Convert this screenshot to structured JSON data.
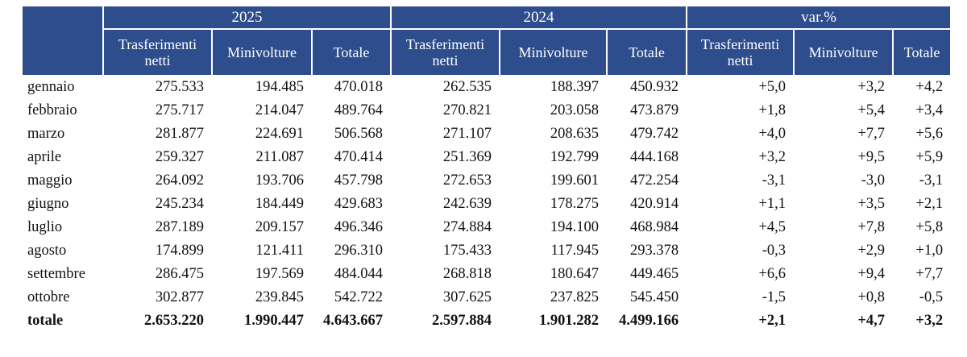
{
  "chart_data": {
    "type": "table",
    "column_groups": [
      "2025",
      "2024",
      "var.%"
    ],
    "sub_columns": [
      "Trasferimenti netti",
      "Minivolture",
      "Totale"
    ],
    "rows": [
      {
        "label": "gennaio",
        "values": [
          "275.533",
          "194.485",
          "470.018",
          "262.535",
          "188.397",
          "450.932",
          "+5,0",
          "+3,2",
          "+4,2"
        ]
      },
      {
        "label": "febbraio",
        "values": [
          "275.717",
          "214.047",
          "489.764",
          "270.821",
          "203.058",
          "473.879",
          "+1,8",
          "+5,4",
          "+3,4"
        ]
      },
      {
        "label": "marzo",
        "values": [
          "281.877",
          "224.691",
          "506.568",
          "271.107",
          "208.635",
          "479.742",
          "+4,0",
          "+7,7",
          "+5,6"
        ]
      },
      {
        "label": "aprile",
        "values": [
          "259.327",
          "211.087",
          "470.414",
          "251.369",
          "192.799",
          "444.168",
          "+3,2",
          "+9,5",
          "+5,9"
        ]
      },
      {
        "label": "maggio",
        "values": [
          "264.092",
          "193.706",
          "457.798",
          "272.653",
          "199.601",
          "472.254",
          "-3,1",
          "-3,0",
          "-3,1"
        ]
      },
      {
        "label": "giugno",
        "values": [
          "245.234",
          "184.449",
          "429.683",
          "242.639",
          "178.275",
          "420.914",
          "+1,1",
          "+3,5",
          "+2,1"
        ]
      },
      {
        "label": "luglio",
        "values": [
          "287.189",
          "209.157",
          "496.346",
          "274.884",
          "194.100",
          "468.984",
          "+4,5",
          "+7,8",
          "+5,8"
        ]
      },
      {
        "label": "agosto",
        "values": [
          "174.899",
          "121.411",
          "296.310",
          "175.433",
          "117.945",
          "293.378",
          "-0,3",
          "+2,9",
          "+1,0"
        ]
      },
      {
        "label": "settembre",
        "values": [
          "286.475",
          "197.569",
          "484.044",
          "268.818",
          "180.647",
          "449.465",
          "+6,6",
          "+9,4",
          "+7,7"
        ]
      },
      {
        "label": "ottobre",
        "values": [
          "302.877",
          "239.845",
          "542.722",
          "307.625",
          "237.825",
          "545.450",
          "-1,5",
          "+0,8",
          "-0,5"
        ]
      }
    ],
    "total_row": {
      "label": "totale",
      "values": [
        "2.653.220",
        "1.990.447",
        "4.643.667",
        "2.597.884",
        "1.901.282",
        "4.499.166",
        "+2,1",
        "+4,7",
        "+3,2"
      ]
    }
  },
  "colors": {
    "header_bg": "#2e4d8c",
    "header_text": "#ffffff",
    "body_text": "#121212"
  }
}
